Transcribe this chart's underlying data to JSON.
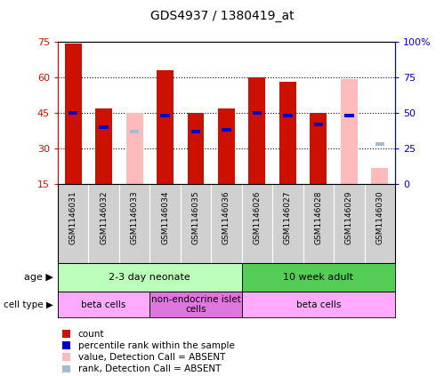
{
  "title": "GDS4937 / 1380419_at",
  "samples": [
    "GSM1146031",
    "GSM1146032",
    "GSM1146033",
    "GSM1146034",
    "GSM1146035",
    "GSM1146036",
    "GSM1146026",
    "GSM1146027",
    "GSM1146028",
    "GSM1146029",
    "GSM1146030"
  ],
  "count_values": [
    74,
    47,
    null,
    63,
    45,
    47,
    60,
    58,
    45,
    null,
    null
  ],
  "count_absent": [
    null,
    null,
    45,
    null,
    null,
    null,
    null,
    null,
    null,
    59,
    22
  ],
  "rank_values": [
    45,
    39,
    null,
    44,
    37,
    38,
    45,
    44,
    40,
    44,
    null
  ],
  "rank_absent": [
    null,
    null,
    37,
    null,
    null,
    null,
    null,
    null,
    null,
    null,
    32
  ],
  "ylim": [
    15,
    75
  ],
  "y2lim": [
    0,
    100
  ],
  "yticks": [
    15,
    30,
    45,
    60,
    75
  ],
  "y2ticks": [
    0,
    25,
    50,
    75,
    100
  ],
  "y2ticklabels": [
    "0",
    "25",
    "50",
    "75",
    "100%"
  ],
  "color_count": "#cc1100",
  "color_rank": "#0000cc",
  "color_absent_value": "#ffbbbb",
  "color_absent_rank": "#aabbcc",
  "age_groups": [
    {
      "label": "2-3 day neonate",
      "start": 0,
      "end": 6,
      "color": "#bbffbb"
    },
    {
      "label": "10 week adult",
      "start": 6,
      "end": 11,
      "color": "#55cc55"
    }
  ],
  "cell_groups": [
    {
      "label": "beta cells",
      "start": 0,
      "end": 3,
      "color": "#ffaaff"
    },
    {
      "label": "non-endocrine islet\ncells",
      "start": 3,
      "end": 6,
      "color": "#dd77dd"
    },
    {
      "label": "beta cells",
      "start": 6,
      "end": 11,
      "color": "#ffaaff"
    }
  ],
  "legend_items": [
    {
      "color": "#cc1100",
      "label": "count"
    },
    {
      "color": "#0000cc",
      "label": "percentile rank within the sample"
    },
    {
      "color": "#ffbbbb",
      "label": "value, Detection Call = ABSENT"
    },
    {
      "color": "#aabbcc",
      "label": "rank, Detection Call = ABSENT"
    }
  ],
  "grid_lines": [
    30,
    45,
    60
  ],
  "bar_width": 0.55,
  "rank_bar_width": 0.3,
  "rank_bar_height": 1.5
}
